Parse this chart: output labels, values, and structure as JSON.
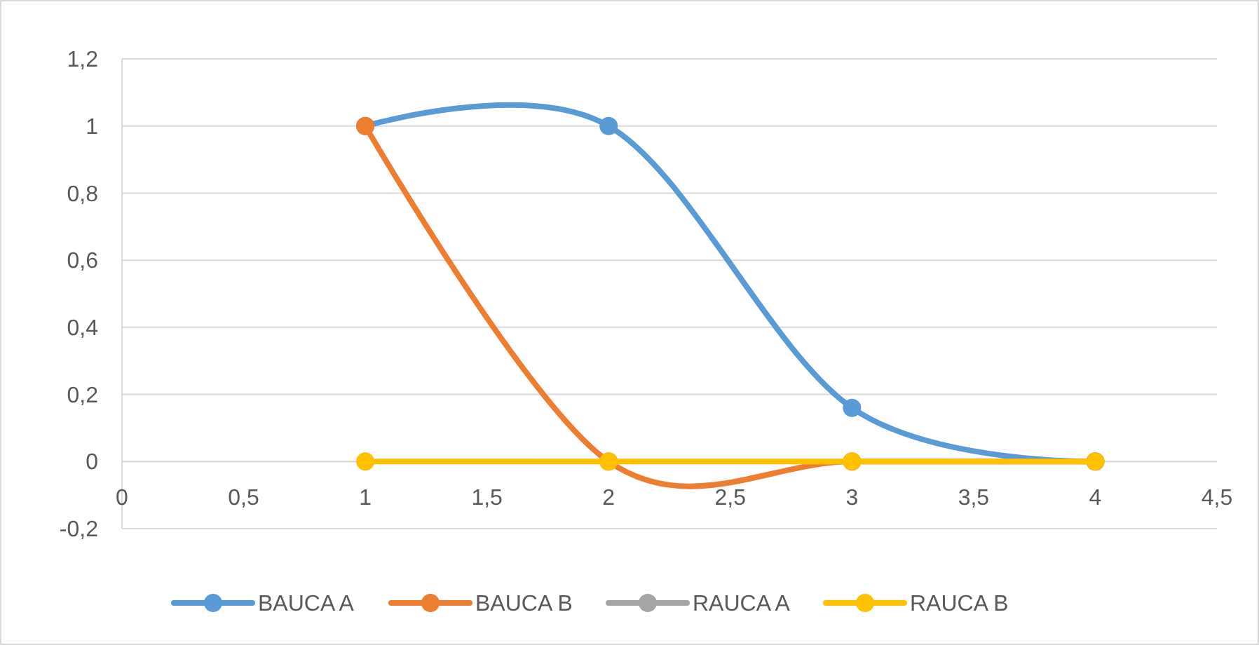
{
  "chart_data": {
    "type": "line",
    "x": [
      1,
      2,
      3,
      4
    ],
    "series": [
      {
        "name": "BAUCA A",
        "color": "#5b9bd5",
        "values": [
          1,
          1,
          0.16,
          0
        ]
      },
      {
        "name": "BAUCA B",
        "color": "#ed7d31",
        "values": [
          1,
          0,
          0,
          0
        ]
      },
      {
        "name": "RAUCA A",
        "color": "#a5a5a5",
        "values": [
          null,
          null,
          null,
          null
        ]
      },
      {
        "name": "RAUCA B",
        "color": "#ffc000",
        "values": [
          0,
          0,
          0,
          0
        ]
      }
    ],
    "xlim": [
      0,
      4.5
    ],
    "xticks": [
      0,
      {
        "value": 0.5,
        "label": "0,5"
      },
      1,
      {
        "value": 1.5,
        "label": "1,5"
      },
      2,
      {
        "value": 2.5,
        "label": "2,5"
      },
      3,
      {
        "value": 3.5,
        "label": "3,5"
      },
      4,
      {
        "value": 4.5,
        "label": "4,5"
      }
    ],
    "ylim": [
      -0.2,
      1.2
    ],
    "yticks": [
      {
        "value": -0.2,
        "label": "-0,2"
      },
      0,
      {
        "value": 0.2,
        "label": "0,2"
      },
      {
        "value": 0.4,
        "label": "0,4"
      },
      {
        "value": 0.6,
        "label": "0,6"
      },
      {
        "value": 0.8,
        "label": "0,8"
      },
      1,
      {
        "value": 1.2,
        "label": "1,2"
      }
    ],
    "grid": "y",
    "legend": "bottom",
    "marker": "circle",
    "line_style": "solid"
  }
}
